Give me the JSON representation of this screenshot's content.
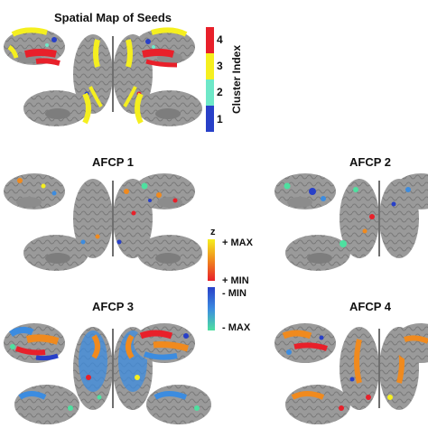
{
  "panels": [
    {
      "id": "seeds",
      "title": "Spatial Map of Seeds"
    },
    {
      "id": "afcp1",
      "title": "AFCP 1"
    },
    {
      "id": "afcp2",
      "title": "AFCP 2"
    },
    {
      "id": "afcp3",
      "title": "AFCP 3"
    },
    {
      "id": "afcp4",
      "title": "AFCP 4"
    }
  ],
  "cluster_legend": {
    "title": "Cluster Index",
    "ticks": [
      "4",
      "3",
      "2",
      "1"
    ],
    "colors": [
      "#e8202a",
      "#f5ef1f",
      "#6ee8c8",
      "#2840c8"
    ]
  },
  "z_legend": {
    "title": "z",
    "labels": [
      "+ MAX",
      "+ MIN",
      "- MIN",
      "- MAX"
    ],
    "positive_colors": [
      "#f5ef1f",
      "#f08a1e",
      "#e8202a"
    ],
    "negative_colors": [
      "#2840c8",
      "#3c8ce0",
      "#4ee0a0"
    ]
  },
  "colors": {
    "brain": "#9a9a9a",
    "brain_dark": "#6f6f6f"
  }
}
